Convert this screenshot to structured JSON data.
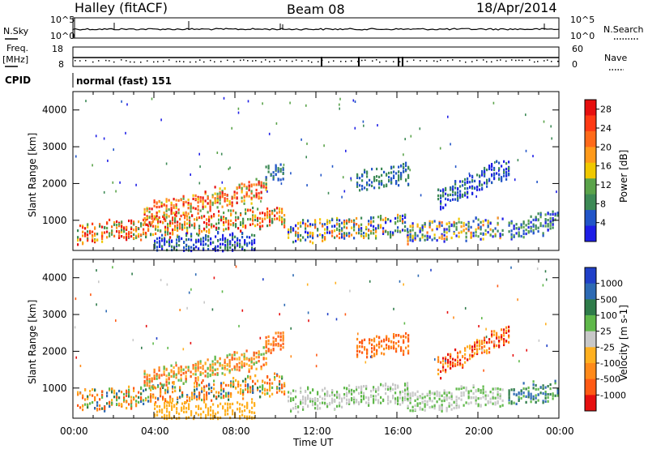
{
  "header": {
    "station": "Halley (fitACF)",
    "beam": "Beam 08",
    "date": "18/Apr/2014"
  },
  "panels": {
    "nsky_label": "N.Sky",
    "nsearch_label": "N.Search",
    "freq_label_1": "Freq.",
    "freq_label_2": "[MHz]",
    "nave_label": "Nave",
    "cpid_label": "CPID",
    "cpid_value": "normal (fast) 151",
    "left_scale_top": "10^5",
    "left_scale_bottom": "10^0",
    "right_scale_top": "10^5",
    "right_scale_bottom": "10^0",
    "freq_top": "18",
    "freq_bottom": "8",
    "nave_top": "60",
    "nave_bottom": "0"
  },
  "colors": {
    "power": [
      "#1e1ee6",
      "#2255c8",
      "#3d8a56",
      "#5aa34a",
      "#f0c800",
      "#ff9a1a",
      "#ff6a1a",
      "#ff3a14",
      "#e60f0f"
    ],
    "velocity": [
      "#2040c8",
      "#2d6ab4",
      "#2f7c4a",
      "#5fb84a",
      "#c8c8c8",
      "#ffb020",
      "#ff8a1a",
      "#ff5a14",
      "#e60f0f"
    ]
  },
  "chart_data": [
    {
      "type": "heatmap",
      "title": "",
      "xlabel": "",
      "ylabel": "Slant Range [km]",
      "x_ticks": [
        "00:00",
        "04:00",
        "08:00",
        "12:00",
        "16:00",
        "20:00",
        "00:00"
      ],
      "y_ticks": [
        1000,
        2000,
        3000,
        4000
      ],
      "xlim_hours": [
        0,
        24
      ],
      "ylim_km": [
        180,
        4500
      ],
      "colorbar": {
        "label": "Power [dB]",
        "ticks": [
          4,
          8,
          12,
          16,
          20,
          24,
          28
        ],
        "range": [
          0,
          30
        ]
      }
    },
    {
      "type": "heatmap",
      "title": "",
      "xlabel": "Time UT",
      "ylabel": "Slant Range [km]",
      "x_ticks": [
        "00:00",
        "04:00",
        "08:00",
        "12:00",
        "16:00",
        "20:00",
        "00:00"
      ],
      "y_ticks": [
        1000,
        2000,
        3000,
        4000
      ],
      "xlim_hours": [
        0,
        24
      ],
      "ylim_km": [
        180,
        4500
      ],
      "colorbar": {
        "label": "Velocity [m s-1]",
        "ticks": [
          "1000",
          "500",
          "100",
          "25",
          "-25",
          "-100",
          "-500",
          "-1000"
        ]
      }
    }
  ]
}
